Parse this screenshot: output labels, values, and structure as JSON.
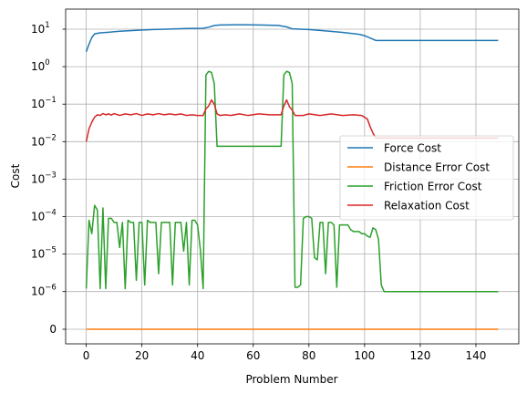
{
  "chart_data": {
    "type": "line",
    "xlabel": "Problem Number",
    "ylabel": "Cost",
    "xlim": [
      -7.4,
      155.4
    ],
    "yscale": "symlog",
    "ylim_note": "symlog axis, zero plotted below 1e-6",
    "grid": true,
    "legend_position": "center-right",
    "x_ticks": [
      0,
      20,
      40,
      60,
      80,
      100,
      120,
      140
    ],
    "y_ticks": [
      {
        "value": 10,
        "label": "10",
        "exp": "1"
      },
      {
        "value": 1,
        "label": "10",
        "exp": "0"
      },
      {
        "value": 0.1,
        "label": "10",
        "exp": "−1"
      },
      {
        "value": 0.01,
        "label": "10",
        "exp": "−2"
      },
      {
        "value": 0.001,
        "label": "10",
        "exp": "−3"
      },
      {
        "value": 0.0001,
        "label": "10",
        "exp": "−4"
      },
      {
        "value": 1e-05,
        "label": "10",
        "exp": "−5"
      },
      {
        "value": 1e-06,
        "label": "10",
        "exp": "−6"
      },
      {
        "value": 0,
        "label": "0",
        "exp": ""
      }
    ],
    "series": [
      {
        "name": "Force Cost",
        "color": "#1f77b4",
        "points": [
          [
            0,
            2.5
          ],
          [
            1,
            4
          ],
          [
            2,
            6
          ],
          [
            3,
            7.5
          ],
          [
            5,
            8
          ],
          [
            8,
            8.3
          ],
          [
            12,
            8.8
          ],
          [
            18,
            9.3
          ],
          [
            24,
            9.8
          ],
          [
            30,
            10.1
          ],
          [
            36,
            10.4
          ],
          [
            42,
            10.6
          ],
          [
            44,
            11.3
          ],
          [
            46,
            12.5
          ],
          [
            48,
            13
          ],
          [
            55,
            13.1
          ],
          [
            62,
            13
          ],
          [
            69,
            12.6
          ],
          [
            72,
            11.5
          ],
          [
            74,
            10.2
          ],
          [
            80,
            9.8
          ],
          [
            86,
            9
          ],
          [
            92,
            8.2
          ],
          [
            98,
            7.3
          ],
          [
            100,
            6.7
          ],
          [
            102,
            5.8
          ],
          [
            104,
            5
          ],
          [
            110,
            5
          ],
          [
            120,
            5
          ],
          [
            130,
            5
          ],
          [
            140,
            5
          ],
          [
            148,
            5
          ]
        ]
      },
      {
        "name": "Distance Error Cost",
        "color": "#ff7f0e",
        "points": [
          [
            0,
            0
          ],
          [
            148,
            0
          ]
        ]
      },
      {
        "name": "Friction Error Cost",
        "color": "#2ca02c",
        "points": [
          [
            0,
            1.2e-06
          ],
          [
            1,
            8e-05
          ],
          [
            2,
            3.5e-05
          ],
          [
            3,
            0.0002
          ],
          [
            4,
            0.00015
          ],
          [
            5,
            1.2e-06
          ],
          [
            6,
            0.00017
          ],
          [
            7,
            1.2e-06
          ],
          [
            8,
            9e-05
          ],
          [
            9,
            9e-05
          ],
          [
            10,
            7e-05
          ],
          [
            11,
            7e-05
          ],
          [
            12,
            1.5e-05
          ],
          [
            13,
            7e-05
          ],
          [
            14,
            1.2e-06
          ],
          [
            15,
            8e-05
          ],
          [
            16,
            7e-05
          ],
          [
            17,
            7e-05
          ],
          [
            18,
            2e-06
          ],
          [
            19,
            7e-05
          ],
          [
            20,
            7e-05
          ],
          [
            21,
            1.5e-06
          ],
          [
            22,
            8e-05
          ],
          [
            23,
            7e-05
          ],
          [
            24,
            7e-05
          ],
          [
            25,
            7e-05
          ],
          [
            26,
            3e-06
          ],
          [
            27,
            7e-05
          ],
          [
            28,
            7e-05
          ],
          [
            29,
            7e-05
          ],
          [
            30,
            7e-05
          ],
          [
            31,
            1.5e-06
          ],
          [
            32,
            7e-05
          ],
          [
            33,
            7e-05
          ],
          [
            34,
            7e-05
          ],
          [
            35,
            1.2e-05
          ],
          [
            36,
            7e-05
          ],
          [
            37,
            1.5e-06
          ],
          [
            38,
            8e-05
          ],
          [
            39,
            8e-05
          ],
          [
            40,
            6e-05
          ],
          [
            41,
            1.3e-05
          ],
          [
            42,
            1.2e-06
          ],
          [
            43,
            0.6
          ],
          [
            44,
            0.75
          ],
          [
            45,
            0.7
          ],
          [
            46,
            0.35
          ],
          [
            47,
            0.0075
          ],
          [
            55,
            0.0075
          ],
          [
            62,
            0.0075
          ],
          [
            70,
            0.0075
          ],
          [
            71,
            0.6
          ],
          [
            72,
            0.75
          ],
          [
            73,
            0.7
          ],
          [
            74,
            0.35
          ],
          [
            75,
            1.3e-06
          ],
          [
            76,
            1.3e-06
          ],
          [
            77,
            1.5e-06
          ],
          [
            78,
            9e-05
          ],
          [
            79,
            0.0001
          ],
          [
            80,
            0.0001
          ],
          [
            81,
            9e-05
          ],
          [
            82,
            8e-06
          ],
          [
            83,
            7e-06
          ],
          [
            84,
            7e-05
          ],
          [
            85,
            7e-05
          ],
          [
            86,
            3e-06
          ],
          [
            87,
            7e-05
          ],
          [
            88,
            7e-05
          ],
          [
            89,
            6e-05
          ],
          [
            90,
            1.3e-06
          ],
          [
            91,
            6e-05
          ],
          [
            92,
            6e-05
          ],
          [
            93,
            6e-05
          ],
          [
            94,
            6e-05
          ],
          [
            95,
            4.5e-05
          ],
          [
            96,
            4e-05
          ],
          [
            97,
            4e-05
          ],
          [
            98,
            4e-05
          ],
          [
            99,
            3.5e-05
          ],
          [
            100,
            3.5e-05
          ],
          [
            101,
            3e-05
          ],
          [
            102,
            2.8e-05
          ],
          [
            103,
            5e-05
          ],
          [
            104,
            4.5e-05
          ],
          [
            105,
            2.5e-05
          ],
          [
            106,
            1.5e-06
          ],
          [
            107,
            1e-06
          ],
          [
            115,
            1e-06
          ],
          [
            125,
            1e-06
          ],
          [
            135,
            1e-06
          ],
          [
            148,
            1e-06
          ]
        ]
      },
      {
        "name": "Relaxation Cost",
        "color": "#d62728",
        "points": [
          [
            0,
            0.01
          ],
          [
            1,
            0.022
          ],
          [
            2,
            0.033
          ],
          [
            3,
            0.045
          ],
          [
            4,
            0.052
          ],
          [
            5,
            0.05
          ],
          [
            6,
            0.056
          ],
          [
            7,
            0.052
          ],
          [
            8,
            0.055
          ],
          [
            9,
            0.051
          ],
          [
            10,
            0.056
          ],
          [
            12,
            0.05
          ],
          [
            14,
            0.055
          ],
          [
            16,
            0.052
          ],
          [
            18,
            0.056
          ],
          [
            20,
            0.05
          ],
          [
            22,
            0.055
          ],
          [
            24,
            0.052
          ],
          [
            26,
            0.056
          ],
          [
            28,
            0.052
          ],
          [
            30,
            0.055
          ],
          [
            32,
            0.052
          ],
          [
            34,
            0.055
          ],
          [
            36,
            0.05
          ],
          [
            38,
            0.052
          ],
          [
            40,
            0.05
          ],
          [
            42,
            0.05
          ],
          [
            43,
            0.075
          ],
          [
            44,
            0.09
          ],
          [
            45,
            0.13
          ],
          [
            46,
            0.1
          ],
          [
            47,
            0.055
          ],
          [
            48,
            0.05
          ],
          [
            50,
            0.052
          ],
          [
            52,
            0.05
          ],
          [
            55,
            0.055
          ],
          [
            58,
            0.05
          ],
          [
            62,
            0.055
          ],
          [
            66,
            0.052
          ],
          [
            70,
            0.052
          ],
          [
            71,
            0.09
          ],
          [
            72,
            0.13
          ],
          [
            73,
            0.085
          ],
          [
            74,
            0.07
          ],
          [
            75,
            0.05
          ],
          [
            78,
            0.05
          ],
          [
            80,
            0.055
          ],
          [
            84,
            0.05
          ],
          [
            88,
            0.055
          ],
          [
            92,
            0.05
          ],
          [
            96,
            0.052
          ],
          [
            99,
            0.05
          ],
          [
            101,
            0.04
          ],
          [
            102,
            0.025
          ],
          [
            103,
            0.017
          ],
          [
            104,
            0.0125
          ],
          [
            110,
            0.0125
          ],
          [
            120,
            0.0125
          ],
          [
            130,
            0.0125
          ],
          [
            140,
            0.0125
          ],
          [
            148,
            0.0125
          ]
        ]
      }
    ]
  }
}
